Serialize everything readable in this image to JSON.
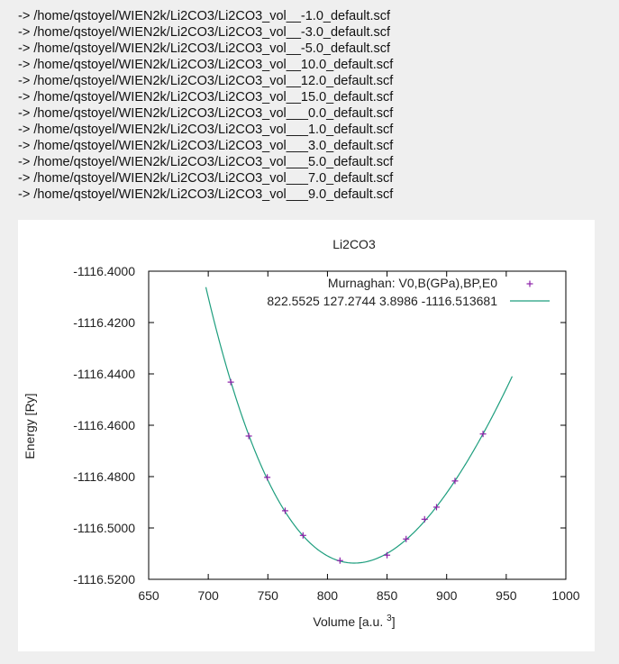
{
  "file_list": [
    "-> /home/qstoyel/WIEN2k/Li2CO3/Li2CO3_vol__-1.0_default.scf",
    "-> /home/qstoyel/WIEN2k/Li2CO3/Li2CO3_vol__-3.0_default.scf",
    "-> /home/qstoyel/WIEN2k/Li2CO3/Li2CO3_vol__-5.0_default.scf",
    "-> /home/qstoyel/WIEN2k/Li2CO3/Li2CO3_vol__10.0_default.scf",
    "-> /home/qstoyel/WIEN2k/Li2CO3/Li2CO3_vol__12.0_default.scf",
    "-> /home/qstoyel/WIEN2k/Li2CO3/Li2CO3_vol__15.0_default.scf",
    "-> /home/qstoyel/WIEN2k/Li2CO3/Li2CO3_vol___0.0_default.scf",
    "-> /home/qstoyel/WIEN2k/Li2CO3/Li2CO3_vol___1.0_default.scf",
    "-> /home/qstoyel/WIEN2k/Li2CO3/Li2CO3_vol___3.0_default.scf",
    "-> /home/qstoyel/WIEN2k/Li2CO3/Li2CO3_vol___5.0_default.scf",
    "-> /home/qstoyel/WIEN2k/Li2CO3/Li2CO3_vol___7.0_default.scf",
    "-> /home/qstoyel/WIEN2k/Li2CO3/Li2CO3_vol___9.0_default.scf"
  ],
  "chart_data": {
    "type": "scatter",
    "title": "Li2CO3",
    "xlabel": "Volume [a.u.",
    "xlabel_superscript": "3",
    "xlabel_suffix": "]",
    "ylabel": "Energy [Ry]",
    "xlim": [
      650,
      1000
    ],
    "ylim": [
      -1116.52,
      -1116.4
    ],
    "xticks": [
      650,
      700,
      750,
      800,
      850,
      900,
      950,
      1000
    ],
    "yticks": [
      -1116.52,
      -1116.5,
      -1116.48,
      -1116.46,
      -1116.44,
      -1116.42,
      -1116.4
    ],
    "ytick_labels": [
      "-1116.5200",
      "-1116.5000",
      "-1116.4800",
      "-1116.4600",
      "-1116.4400",
      "-1116.4200",
      "-1116.4000"
    ],
    "legend_position": "top-right",
    "grid": false,
    "series": [
      {
        "name": "Murnaghan: V0,B(GPa),BP,E0",
        "kind": "points",
        "color": "#8b1fa8",
        "x": [
          718.9,
          734.0,
          749.5,
          764.5,
          779.5,
          810.5,
          850.0,
          866.0,
          881.5,
          891.5,
          907.0,
          930.5
        ],
        "y": [
          -1116.4432,
          -1116.4642,
          -1116.4803,
          -1116.4933,
          -1116.5029,
          -1116.5127,
          -1116.5106,
          -1116.5043,
          -1116.4966,
          -1116.4919,
          -1116.4817,
          -1116.4634
        ]
      },
      {
        "name": "822.5525 127.2744 3.8986 -1116.513681",
        "kind": "fit",
        "color": "#1e9e7e",
        "fit": {
          "model": "murnaghan",
          "V0": 822.5525,
          "B_GPa": 127.2744,
          "BP": 3.8986,
          "E0": -1116.513681,
          "x_range": [
            698,
            955
          ]
        }
      }
    ]
  }
}
